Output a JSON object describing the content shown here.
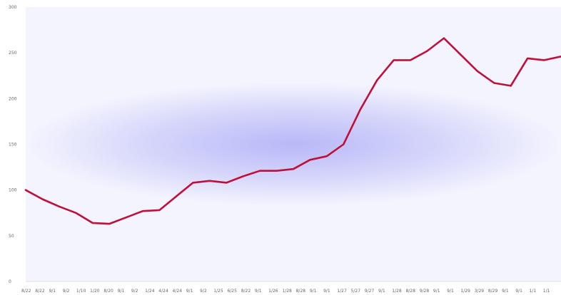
{
  "chart_data": {
    "type": "line",
    "title": "",
    "xlabel": "",
    "ylabel": "",
    "ylim": [
      0,
      300
    ],
    "y_ticks": [
      "0",
      "50",
      "100",
      "150",
      "200",
      "250",
      "300"
    ],
    "x_ticks": [
      "8/22",
      "8/22",
      "9/1",
      "9/2",
      "1/10",
      "1/20",
      "8/20",
      "9/1",
      "9/2",
      "1/24",
      "4/24",
      "4/24",
      "9/1",
      "9/2",
      "1/25",
      "6/25",
      "8/22",
      "9/1",
      "1/26",
      "1/28",
      "8/28",
      "9/1",
      "9/1",
      "1/27",
      "5/27",
      "9/27",
      "9/1",
      "1/28",
      "8/28",
      "9/28",
      "9/1",
      "9/1",
      "1/29",
      "3/29",
      "8/29",
      "9/1",
      "9/1",
      "1/1",
      "1/1"
    ],
    "grid": false,
    "legend": "none",
    "line_color": "#c0103a",
    "background_center_color": "#b8b8f8",
    "background_edge_color": "#f4f4fe",
    "series": [
      {
        "values": [
          100,
          90,
          82,
          75,
          64,
          63,
          70,
          77,
          78,
          93,
          108,
          110,
          108,
          115,
          121,
          121,
          123,
          133,
          137,
          150,
          188,
          220,
          242,
          242,
          252,
          266,
          248,
          230,
          217,
          214,
          244,
          242,
          246
        ]
      }
    ]
  }
}
